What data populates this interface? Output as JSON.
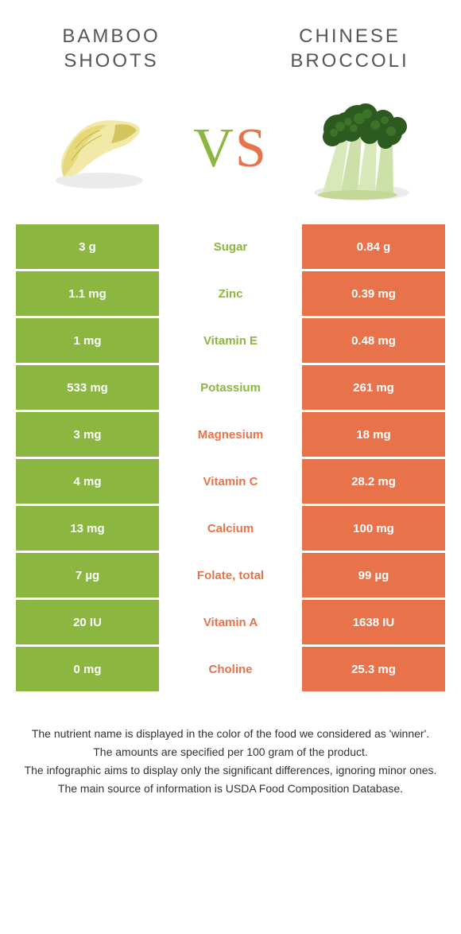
{
  "foods": {
    "left": {
      "name": "Bamboo shoots"
    },
    "right": {
      "name": "Chinese broccoli"
    }
  },
  "vs": {
    "v": "V",
    "s": "S"
  },
  "colors": {
    "green": "#8bb63f",
    "orange": "#e8734a",
    "white": "#ffffff"
  },
  "rows": [
    {
      "left": "3 g",
      "label": "Sugar",
      "right": "0.84 g",
      "winner": "left"
    },
    {
      "left": "1.1 mg",
      "label": "Zinc",
      "right": "0.39 mg",
      "winner": "left"
    },
    {
      "left": "1 mg",
      "label": "Vitamin E",
      "right": "0.48 mg",
      "winner": "left"
    },
    {
      "left": "533 mg",
      "label": "Potassium",
      "right": "261 mg",
      "winner": "left"
    },
    {
      "left": "3 mg",
      "label": "Magnesium",
      "right": "18 mg",
      "winner": "right"
    },
    {
      "left": "4 mg",
      "label": "Vitamin C",
      "right": "28.2 mg",
      "winner": "right"
    },
    {
      "left": "13 mg",
      "label": "Calcium",
      "right": "100 mg",
      "winner": "right"
    },
    {
      "left": "7 µg",
      "label": "Folate, total",
      "right": "99 µg",
      "winner": "right"
    },
    {
      "left": "20 IU",
      "label": "Vitamin A",
      "right": "1638 IU",
      "winner": "right"
    },
    {
      "left": "0 mg",
      "label": "Choline",
      "right": "25.3 mg",
      "winner": "right"
    }
  ],
  "footer": [
    "The nutrient name is displayed in the color of the food we considered as 'winner'.",
    "The amounts are specified per 100 gram of the product.",
    "The infographic aims to display only the significant differences, ignoring minor ones.",
    "The main source of information is USDA Food Composition Database."
  ]
}
